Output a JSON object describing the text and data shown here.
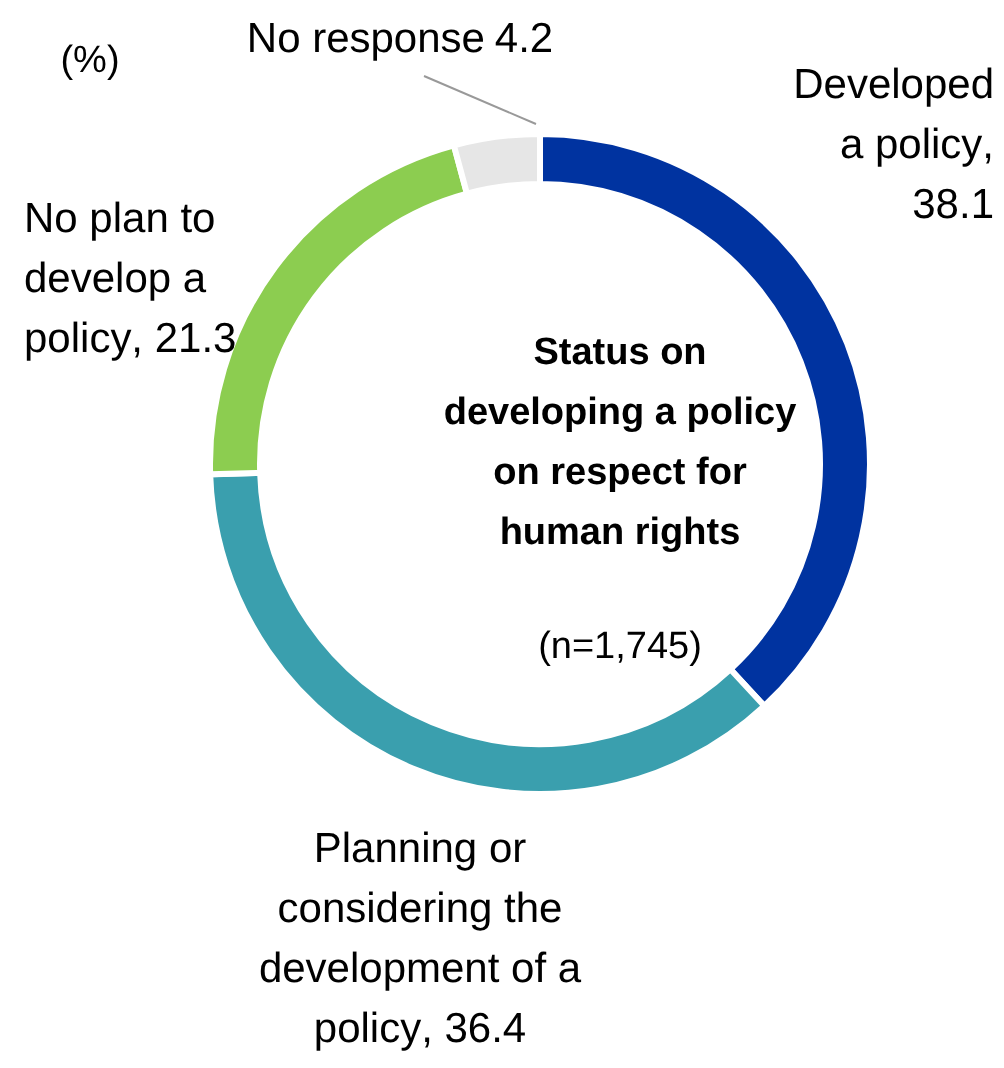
{
  "chart_data": {
    "type": "donut",
    "title": "Status on developing a policy on respect for human rights",
    "subtitle": "(n=1,745)",
    "annotations": [
      "(%)"
    ],
    "categories": [
      "Developed a policy",
      "Planning or considering the development of a policy",
      "No plan to develop a policy",
      "No response"
    ],
    "values": [
      38.1,
      36.4,
      21.3,
      4.2
    ],
    "colors": [
      "#0033a0",
      "#3a9fae",
      "#8ccd50",
      "#e6e6e6"
    ],
    "value_labels": [
      ", 38.1",
      ", 36.4",
      ", 21.3",
      "4.2"
    ]
  }
}
